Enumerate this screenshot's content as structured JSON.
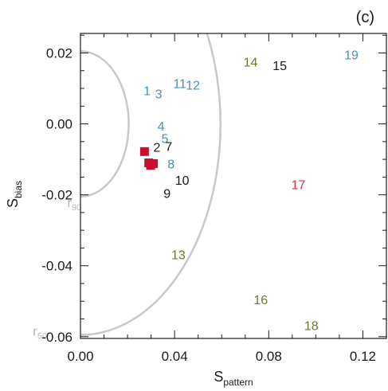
{
  "panel_label": "(c)",
  "chart_data": {
    "type": "scatter",
    "xlabel": "S",
    "xlabel_sub": "pattern",
    "ylabel": "S",
    "ylabel_sub": "bias",
    "xlim": [
      0.0,
      0.13
    ],
    "ylim": [
      -0.0605,
      0.0255
    ],
    "xticks": [
      {
        "value": 0.0,
        "label": "0.00"
      },
      {
        "value": 0.04,
        "label": "0.04"
      },
      {
        "value": 0.08,
        "label": "0.08"
      },
      {
        "value": 0.12,
        "label": "0.12"
      }
    ],
    "yticks": [
      {
        "value": 0.02,
        "label": "0.02"
      },
      {
        "value": 0.0,
        "label": "0.00"
      },
      {
        "value": -0.02,
        "label": "-0.02"
      },
      {
        "value": -0.04,
        "label": "-0.04"
      },
      {
        "value": -0.06,
        "label": "-0.06"
      }
    ],
    "contours": [
      {
        "name": "r",
        "sub": "90",
        "radius": 0.0205,
        "color": "#c8c8c8"
      },
      {
        "name": "r",
        "sub": "50",
        "radius": 0.0595,
        "color": "#c8c8c8"
      }
    ],
    "labeled_points": [
      {
        "label": "1",
        "x": 0.0283,
        "y": 0.0095,
        "color": "#4a8fb5"
      },
      {
        "label": "3",
        "x": 0.0332,
        "y": 0.0085,
        "color": "#4a8fb5"
      },
      {
        "label": "11",
        "x": 0.0422,
        "y": 0.0115,
        "color": "#4a8fb5"
      },
      {
        "label": "12",
        "x": 0.0478,
        "y": 0.011,
        "color": "#4a8fb5"
      },
      {
        "label": "4",
        "x": 0.0342,
        "y": -0.0005,
        "color": "#4a8fb5"
      },
      {
        "label": "5",
        "x": 0.0359,
        "y": -0.004,
        "color": "#4a8fb5"
      },
      {
        "label": "2",
        "x": 0.0325,
        "y": -0.0065,
        "color": "#1a1a1a"
      },
      {
        "label": "7",
        "x": 0.0375,
        "y": -0.0063,
        "color": "#1a1a1a"
      },
      {
        "label": "8",
        "x": 0.0385,
        "y": -0.0112,
        "color": "#4a8fb5"
      },
      {
        "label": "10",
        "x": 0.0432,
        "y": -0.0158,
        "color": "#1a1a1a"
      },
      {
        "label": "9",
        "x": 0.0368,
        "y": -0.0195,
        "color": "#1a1a1a"
      },
      {
        "label": "14",
        "x": 0.0723,
        "y": 0.0175,
        "color": "#6b7a2a"
      },
      {
        "label": "15",
        "x": 0.0847,
        "y": 0.0165,
        "color": "#1a1a1a"
      },
      {
        "label": "19",
        "x": 0.1151,
        "y": 0.0195,
        "color": "#4a8fb5"
      },
      {
        "label": "17",
        "x": 0.0926,
        "y": -0.017,
        "color": "#d9304a"
      },
      {
        "label": "13",
        "x": 0.0416,
        "y": -0.0368,
        "color": "#6b7a2a"
      },
      {
        "label": "16",
        "x": 0.0766,
        "y": -0.0495,
        "color": "#6b7a2a"
      },
      {
        "label": "18",
        "x": 0.0981,
        "y": -0.0568,
        "color": "#6b7a2a"
      }
    ],
    "markers": {
      "color": "#c8102e",
      "points": [
        {
          "x": 0.0272,
          "y": -0.0078
        },
        {
          "x": 0.029,
          "y": -0.011
        },
        {
          "x": 0.0298,
          "y": -0.0117
        },
        {
          "x": 0.031,
          "y": -0.0112
        }
      ]
    }
  }
}
